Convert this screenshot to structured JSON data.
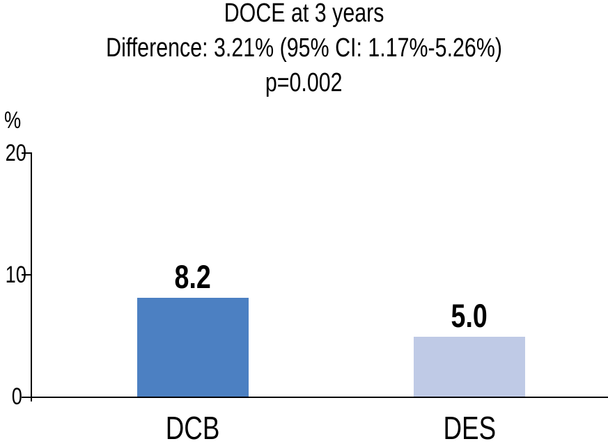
{
  "chart_data": {
    "type": "bar",
    "title": "DOCE at 3 years",
    "subtitle": "Difference: 3.21% (95% CI: 1.17%-5.26%)",
    "p_value_label": "p=0.002",
    "categories": [
      "DCB",
      "DES"
    ],
    "values": [
      8.2,
      5.0
    ],
    "value_labels": [
      "8.2",
      "5.0"
    ],
    "bar_colors": [
      "#4C80C2",
      "#BFCAE6"
    ],
    "ylabel": "%",
    "ylim": [
      0,
      20
    ],
    "yticks": [
      20,
      10,
      0
    ],
    "ytick_labels": [
      "20",
      "10",
      "0"
    ],
    "axis_color": "#000000",
    "text_color": "#000000",
    "grid": false,
    "legend": null
  }
}
